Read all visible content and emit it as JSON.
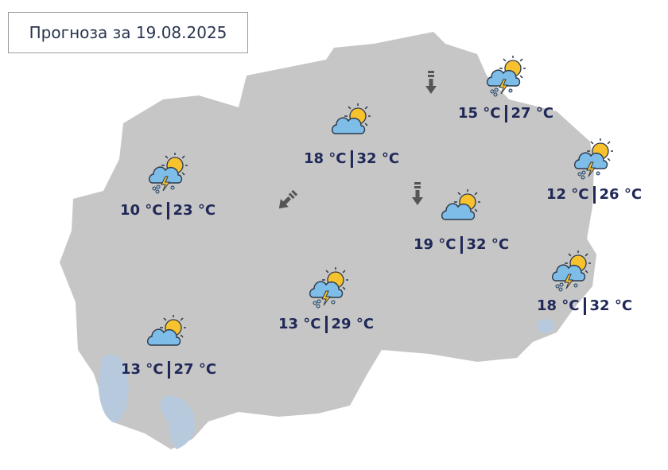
{
  "title": "Прогноза за 19.08.2025",
  "colors": {
    "land": "#c6c6c6",
    "lake": "#b7cadd",
    "text": "#1f2857",
    "sun": "#f7c22e",
    "cloud": "#7dbde8"
  },
  "stations": [
    {
      "icon": "thunderstorm-sun-icon",
      "min": "10 °C",
      "max": "23 °C"
    },
    {
      "icon": "partly-cloudy-icon",
      "min": "18 °C",
      "max": "32 °C"
    },
    {
      "icon": "thunderstorm-sun-icon",
      "min": "15 °C",
      "max": "27 °C"
    },
    {
      "icon": "thunderstorm-sun-icon",
      "min": "12 °C",
      "max": "26 °C"
    },
    {
      "icon": "partly-cloudy-icon",
      "min": "19 °C",
      "max": "32 °C"
    },
    {
      "icon": "thunderstorm-sun-icon",
      "min": "18 °C",
      "max": "32 °C"
    },
    {
      "icon": "thunderstorm-sun-icon",
      "min": "13 °C",
      "max": "29 °C"
    },
    {
      "icon": "partly-cloudy-icon",
      "min": "13 °C",
      "max": "27 °C"
    }
  ],
  "wind": [
    {
      "icon": "wind-arrow-icon",
      "direction": "north"
    },
    {
      "icon": "wind-arrow-icon",
      "direction": "north"
    },
    {
      "icon": "wind-arrow-icon",
      "direction": "northeast"
    }
  ]
}
